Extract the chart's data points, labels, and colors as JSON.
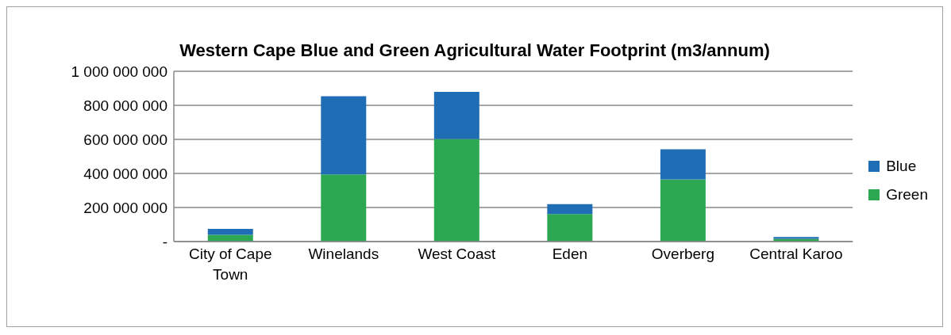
{
  "chart_data": {
    "type": "bar",
    "title": "Western Cape Blue and Green Agricultural Water Footprint (m3/annum)",
    "categories": [
      "City of Cape Town",
      "Winelands",
      "West Coast",
      "Eden",
      "Overberg",
      "Central Karoo"
    ],
    "stacked": true,
    "series": [
      {
        "name": "Green",
        "color": "#2ca853",
        "values": [
          39000000,
          394000000,
          602000000,
          162000000,
          365000000,
          16000000
        ]
      },
      {
        "name": "Blue",
        "color": "#1f6db5",
        "values": [
          35000000,
          460000000,
          277000000,
          58000000,
          177000000,
          11000000
        ]
      }
    ],
    "ylim": [
      0,
      1000000000
    ],
    "yticks": [
      {
        "value": 0,
        "label": "-"
      },
      {
        "value": 200000000,
        "label": "200 000 000"
      },
      {
        "value": 400000000,
        "label": "400 000 000"
      },
      {
        "value": 600000000,
        "label": "600 000 000"
      },
      {
        "value": 800000000,
        "label": "800 000 000"
      },
      {
        "value": 1000000000,
        "label": "1 000 000 000"
      }
    ],
    "grid": "y",
    "legend": "right"
  }
}
